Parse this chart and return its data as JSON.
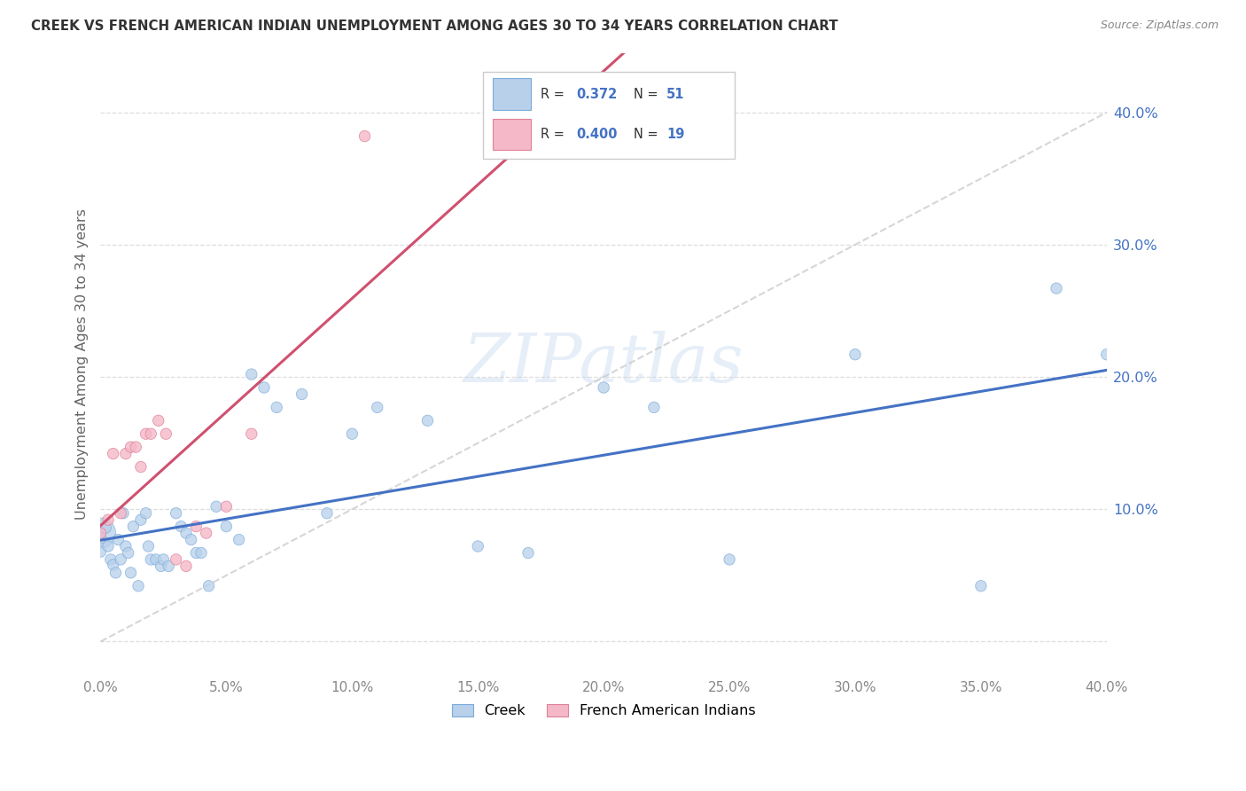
{
  "title": "CREEK VS FRENCH AMERICAN INDIAN UNEMPLOYMENT AMONG AGES 30 TO 34 YEARS CORRELATION CHART",
  "source": "Source: ZipAtlas.com",
  "ylabel": "Unemployment Among Ages 30 to 34 years",
  "xlim": [
    0.0,
    0.4
  ],
  "ylim": [
    -0.025,
    0.445
  ],
  "creek_R": "0.372",
  "creek_N": "51",
  "fai_R": "0.400",
  "fai_N": "19",
  "creek_color": "#b8d0ea",
  "fai_color": "#f4b8c8",
  "creek_edge_color": "#7aabda",
  "fai_edge_color": "#e08098",
  "creek_line_color": "#4472c4",
  "fai_line_color": "#d05070",
  "ref_line_color": "#cccccc",
  "watermark": "ZIPatlas",
  "creek_x": [
    0.0,
    0.0,
    0.0,
    0.002,
    0.003,
    0.004,
    0.005,
    0.006,
    0.007,
    0.008,
    0.009,
    0.01,
    0.011,
    0.012,
    0.013,
    0.015,
    0.016,
    0.018,
    0.019,
    0.02,
    0.022,
    0.024,
    0.025,
    0.027,
    0.03,
    0.032,
    0.034,
    0.036,
    0.038,
    0.04,
    0.043,
    0.046,
    0.05,
    0.055,
    0.06,
    0.065,
    0.07,
    0.08,
    0.09,
    0.1,
    0.11,
    0.13,
    0.15,
    0.17,
    0.2,
    0.22,
    0.25,
    0.3,
    0.35,
    0.38,
    0.4
  ],
  "creek_y": [
    0.082,
    0.078,
    0.068,
    0.086,
    0.072,
    0.062,
    0.058,
    0.052,
    0.077,
    0.062,
    0.097,
    0.072,
    0.067,
    0.052,
    0.087,
    0.042,
    0.092,
    0.097,
    0.072,
    0.062,
    0.062,
    0.057,
    0.062,
    0.057,
    0.097,
    0.087,
    0.082,
    0.077,
    0.067,
    0.067,
    0.042,
    0.102,
    0.087,
    0.077,
    0.202,
    0.192,
    0.177,
    0.187,
    0.097,
    0.157,
    0.177,
    0.167,
    0.072,
    0.067,
    0.192,
    0.177,
    0.062,
    0.217,
    0.042,
    0.267,
    0.217
  ],
  "creek_sizes": [
    600,
    80,
    80,
    80,
    80,
    80,
    80,
    80,
    80,
    80,
    80,
    80,
    80,
    80,
    80,
    80,
    80,
    80,
    80,
    80,
    80,
    80,
    80,
    80,
    80,
    80,
    80,
    80,
    80,
    80,
    80,
    80,
    80,
    80,
    80,
    80,
    80,
    80,
    80,
    80,
    80,
    80,
    80,
    80,
    80,
    80,
    80,
    80,
    80,
    80,
    80
  ],
  "fai_x": [
    0.0,
    0.003,
    0.005,
    0.008,
    0.01,
    0.012,
    0.014,
    0.016,
    0.018,
    0.02,
    0.023,
    0.026,
    0.03,
    0.034,
    0.038,
    0.042,
    0.05,
    0.06,
    0.105
  ],
  "fai_y": [
    0.082,
    0.092,
    0.142,
    0.097,
    0.142,
    0.147,
    0.147,
    0.132,
    0.157,
    0.157,
    0.167,
    0.157,
    0.062,
    0.057,
    0.087,
    0.082,
    0.102,
    0.157,
    0.382
  ],
  "fai_sizes": [
    80,
    80,
    80,
    80,
    80,
    80,
    80,
    80,
    80,
    80,
    80,
    80,
    80,
    80,
    80,
    80,
    80,
    80,
    80
  ]
}
